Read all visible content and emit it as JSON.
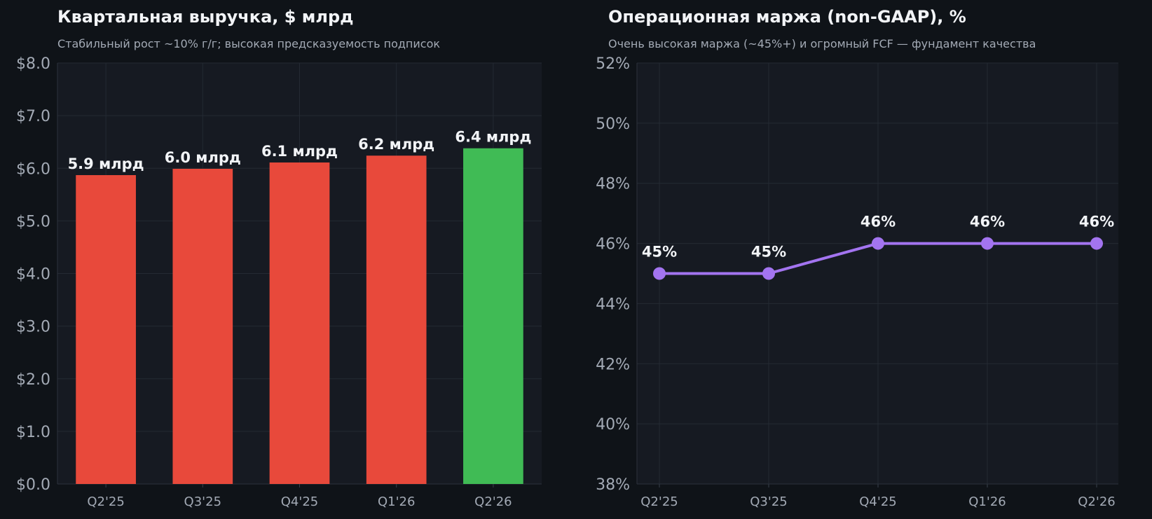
{
  "colors": {
    "background": "#0f1318",
    "plot_bg": "#161a22",
    "grid": "#242a33",
    "bar_default": "#e8493b",
    "bar_highlight": "#40bb55",
    "line": "#a374f0",
    "text": "#f2f4f7",
    "muted": "#a3aab5"
  },
  "chart_data": [
    {
      "type": "bar",
      "title": "Квартальная выручка, $ млрд",
      "subtitle": "Стабильный рост ~10% г/г; высокая предсказуемость подписок",
      "categories": [
        "Q2'25",
        "Q3'25",
        "Q4'25",
        "Q1'26",
        "Q2'26"
      ],
      "values": [
        5.87,
        5.99,
        6.11,
        6.24,
        6.38
      ],
      "data_labels": [
        "5.9 млрд",
        "6.0 млрд",
        "6.1 млрд",
        "6.2 млрд",
        "6.4 млрд"
      ],
      "highlight_index": 4,
      "ylim": [
        0,
        8
      ],
      "yticks": [
        0,
        1,
        2,
        3,
        4,
        5,
        6,
        7,
        8
      ],
      "ytick_labels": [
        "$0.0",
        "$1.0",
        "$2.0",
        "$3.0",
        "$4.0",
        "$5.0",
        "$6.0",
        "$7.0",
        "$8.0"
      ],
      "grid": true
    },
    {
      "type": "line",
      "title": "Операционная маржа (non-GAAP), %",
      "subtitle": "Очень высокая маржа (~45%+) и огромный FCF — фундамент качества",
      "categories": [
        "Q2'25",
        "Q3'25",
        "Q4'25",
        "Q1'26",
        "Q2'26"
      ],
      "values": [
        45,
        45,
        46,
        46,
        46
      ],
      "data_labels": [
        "45%",
        "45%",
        "46%",
        "46%",
        "46%"
      ],
      "ylim": [
        38,
        52
      ],
      "yticks": [
        38,
        40,
        42,
        44,
        46,
        48,
        50,
        52
      ],
      "ytick_labels": [
        "38%",
        "40%",
        "42%",
        "44%",
        "46%",
        "48%",
        "50%",
        "52%"
      ],
      "grid": true
    }
  ]
}
